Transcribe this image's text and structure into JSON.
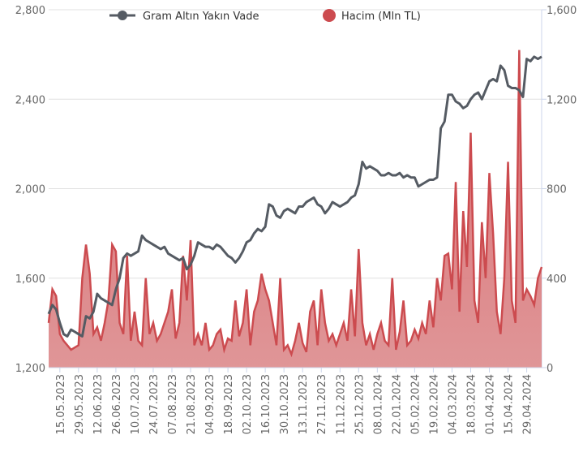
{
  "chart_data": {
    "type": "line",
    "categories": [
      null,
      null,
      null,
      "15.05.2023",
      null,
      null,
      null,
      null,
      "29.05.2023",
      null,
      null,
      null,
      null,
      "12.06.2023",
      null,
      null,
      null,
      null,
      "26.06.2023",
      null,
      null,
      null,
      null,
      "10.07.2023",
      null,
      null,
      null,
      null,
      "24.07.2023",
      null,
      null,
      null,
      null,
      "07.08.2023",
      null,
      null,
      null,
      null,
      "21.08.2023",
      null,
      null,
      null,
      null,
      "04.09.2023",
      null,
      null,
      null,
      null,
      "18.09.2023",
      null,
      null,
      null,
      null,
      "02.10.2023",
      null,
      null,
      null,
      null,
      "16.10.2023",
      null,
      null,
      null,
      null,
      "30.10.2023",
      null,
      null,
      null,
      null,
      "13.11.2023",
      null,
      null,
      null,
      null,
      "27.11.2023",
      null,
      null,
      null,
      null,
      "11.12.2023",
      null,
      null,
      null,
      null,
      "25.12.2023",
      null,
      null,
      null,
      null,
      "08.01.2024",
      null,
      null,
      null,
      null,
      "22.01.2024",
      null,
      null,
      null,
      null,
      "05.02.2024",
      null,
      null,
      null,
      null,
      "19.02.2024",
      null,
      null,
      null,
      null,
      "04.03.2024",
      null,
      null,
      null,
      null,
      "18.03.2024",
      null,
      null,
      null,
      null,
      "01.04.2024",
      null,
      null,
      null,
      null,
      "15.04.2024",
      null,
      null,
      null,
      null,
      "29.04.2024",
      null,
      null,
      null,
      null
    ],
    "series": [
      {
        "name": "Gram Altın Yakın Vade",
        "type": "line",
        "color": "#555b63",
        "axis": "y",
        "values": [
          1440,
          1480,
          1460,
          1400,
          1350,
          1340,
          1370,
          1360,
          1350,
          1340,
          1430,
          1420,
          1450,
          1530,
          1510,
          1500,
          1490,
          1480,
          1550,
          1600,
          1690,
          1710,
          1700,
          1710,
          1720,
          1790,
          1770,
          1760,
          1750,
          1740,
          1730,
          1740,
          1710,
          1700,
          1690,
          1680,
          1690,
          1640,
          1660,
          1700,
          1760,
          1750,
          1740,
          1740,
          1730,
          1750,
          1740,
          1720,
          1700,
          1690,
          1670,
          1690,
          1720,
          1760,
          1770,
          1800,
          1820,
          1810,
          1830,
          1930,
          1920,
          1880,
          1870,
          1900,
          1910,
          1900,
          1890,
          1920,
          1920,
          1940,
          1950,
          1960,
          1930,
          1920,
          1890,
          1910,
          1940,
          1930,
          1920,
          1930,
          1940,
          1960,
          1970,
          2020,
          2120,
          2090,
          2100,
          2090,
          2080,
          2060,
          2060,
          2070,
          2060,
          2060,
          2070,
          2050,
          2060,
          2050,
          2050,
          2010,
          2020,
          2030,
          2040,
          2040,
          2050,
          2270,
          2300,
          2420,
          2420,
          2390,
          2380,
          2360,
          2370,
          2400,
          2420,
          2430,
          2400,
          2440,
          2480,
          2490,
          2480,
          2550,
          2530,
          2460,
          2450,
          2450,
          2440,
          2410,
          2580,
          2570,
          2590,
          2580,
          2590
        ]
      },
      {
        "name": "Hacim (Mln TL)",
        "type": "area",
        "color": "#cc4b4f",
        "axis": "y2",
        "values": [
          200,
          350,
          320,
          150,
          120,
          100,
          80,
          90,
          100,
          400,
          550,
          420,
          150,
          180,
          120,
          200,
          300,
          550,
          520,
          200,
          150,
          500,
          120,
          250,
          120,
          100,
          400,
          150,
          200,
          120,
          150,
          200,
          250,
          350,
          130,
          200,
          500,
          300,
          570,
          100,
          150,
          100,
          200,
          80,
          100,
          150,
          170,
          80,
          130,
          120,
          300,
          140,
          200,
          350,
          100,
          250,
          300,
          420,
          350,
          300,
          200,
          100,
          400,
          80,
          100,
          60,
          120,
          200,
          110,
          70,
          250,
          300,
          100,
          350,
          200,
          120,
          150,
          100,
          150,
          200,
          120,
          350,
          140,
          530,
          200,
          100,
          150,
          80,
          150,
          200,
          120,
          100,
          400,
          80,
          160,
          300,
          100,
          120,
          170,
          130,
          200,
          150,
          300,
          180,
          400,
          300,
          500,
          510,
          350,
          830,
          250,
          700,
          450,
          1050,
          300,
          200,
          650,
          400,
          870,
          600,
          250,
          150,
          400,
          920,
          300,
          200,
          1420,
          300,
          350,
          320,
          280,
          400,
          450
        ]
      }
    ],
    "ylim": [
      1200,
      2800
    ],
    "yticks": [
      {
        "value": 1200,
        "label": "1,200"
      },
      {
        "value": 1600,
        "label": "1,600"
      },
      {
        "value": 2000,
        "label": "2,000"
      },
      {
        "value": 2400,
        "label": "2,400"
      },
      {
        "value": 2800,
        "label": "2,800"
      }
    ],
    "y2lim": [
      0,
      1600
    ],
    "y2ticks": [
      0,
      400,
      800,
      {
        "value": 1200,
        "label": "1,200"
      },
      {
        "value": 1600,
        "label": "1,600"
      }
    ],
    "grid": true
  }
}
